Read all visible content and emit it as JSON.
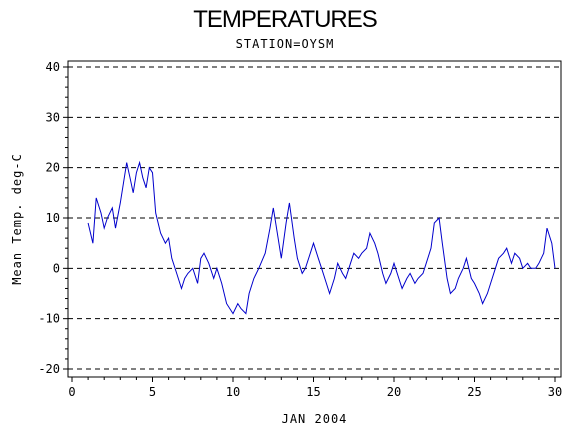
{
  "chart_data": {
    "type": "line",
    "title": "TEMPERATURES",
    "subtitle": "STATION=OYSM",
    "xlabel": "JAN 2004",
    "ylabel": "Mean Temp. deg-C",
    "xlim": [
      0,
      30
    ],
    "ylim": [
      -20,
      40
    ],
    "x_ticks": [
      0,
      5,
      10,
      15,
      20,
      25,
      30
    ],
    "y_ticks": [
      -20,
      -10,
      0,
      10,
      20,
      30,
      40
    ],
    "grid": "horizontal dashed at y ticks",
    "line_color": "#0000cc",
    "series": [
      {
        "x": [
          1.0,
          1.3,
          1.5,
          1.8,
          2.0,
          2.2,
          2.5,
          2.7,
          3.0,
          3.2,
          3.4,
          3.6,
          3.8,
          4.0,
          4.2,
          4.4,
          4.6,
          4.8,
          5.0,
          5.2,
          5.5,
          5.8,
          6.0,
          6.2,
          6.5,
          6.8,
          7.0,
          7.2,
          7.5,
          7.8,
          8.0,
          8.2,
          8.5,
          8.8,
          9.0,
          9.3,
          9.6,
          10.0,
          10.3,
          10.5,
          10.8,
          11.0,
          11.3,
          11.6,
          12.0,
          12.3,
          12.5,
          12.8,
          13.0,
          13.3,
          13.5,
          13.8,
          14.0,
          14.3,
          14.5,
          14.8,
          15.0,
          15.3,
          15.5,
          15.8,
          16.0,
          16.3,
          16.5,
          16.8,
          17.0,
          17.3,
          17.5,
          17.8,
          18.0,
          18.3,
          18.5,
          18.8,
          19.0,
          19.3,
          19.5,
          19.8,
          20.0,
          20.3,
          20.5,
          20.8,
          21.0,
          21.3,
          21.5,
          21.8,
          22.0,
          22.3,
          22.5,
          22.8,
          23.0,
          23.3,
          23.5,
          23.8,
          24.0,
          24.3,
          24.5,
          24.8,
          25.0,
          25.3,
          25.5,
          25.8,
          26.0,
          26.3,
          26.5,
          26.8,
          27.0,
          27.3,
          27.5,
          27.8,
          28.0,
          28.3,
          28.5,
          28.8,
          29.0,
          29.3,
          29.5,
          29.8,
          30.0
        ],
        "y": [
          9,
          5,
          14,
          11,
          8,
          10,
          12,
          8,
          13,
          17,
          21,
          18,
          15,
          19,
          21,
          18,
          16,
          20,
          19,
          11,
          7,
          5,
          6,
          2,
          -1,
          -4,
          -2,
          -1,
          0,
          -3,
          2,
          3,
          1,
          -2,
          0,
          -3,
          -7,
          -9,
          -7,
          -8,
          -9,
          -5,
          -2,
          0,
          3,
          8,
          12,
          6,
          2,
          9,
          13,
          6,
          2,
          -1,
          0,
          3,
          5,
          2,
          0,
          -3,
          -5,
          -2,
          1,
          -1,
          -2,
          1,
          3,
          2,
          3,
          4,
          7,
          5,
          3,
          -1,
          -3,
          -1,
          1,
          -2,
          -4,
          -2,
          -1,
          -3,
          -2,
          -1,
          1,
          4,
          9,
          10,
          5,
          -2,
          -5,
          -4,
          -2,
          0,
          2,
          -2,
          -3,
          -5,
          -7,
          -5,
          -3,
          0,
          2,
          3,
          4,
          1,
          3,
          2,
          0,
          1,
          0,
          0,
          1,
          3,
          8,
          5,
          0
        ]
      }
    ]
  }
}
